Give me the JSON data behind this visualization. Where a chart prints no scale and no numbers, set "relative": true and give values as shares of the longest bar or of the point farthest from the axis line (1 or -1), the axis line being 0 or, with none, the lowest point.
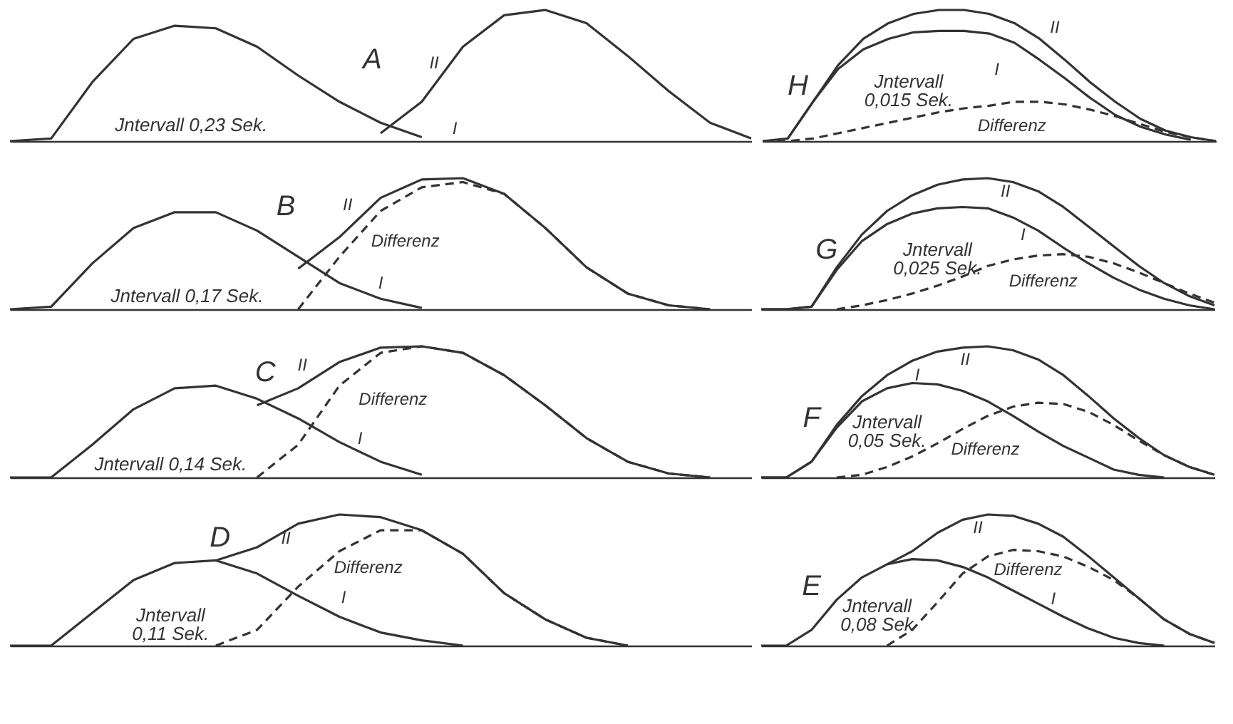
{
  "chart_data": [
    {
      "type": "line",
      "relative": true,
      "categories": [
        null,
        null,
        null,
        null,
        null,
        null,
        null,
        null,
        null,
        null,
        null,
        null,
        null,
        null,
        null,
        null,
        null,
        null,
        null
      ],
      "annotations": [
        "A",
        "Jntervall 0,23 Sek."
      ],
      "series": [
        {
          "name": "I",
          "color": "#333333",
          "line_style": "solid",
          "values": [
            0,
            0.02,
            0.45,
            0.78,
            0.88,
            0.86,
            0.72,
            0.5,
            0.3,
            0.14,
            0.03,
            null,
            null,
            null,
            null,
            null,
            null,
            null,
            null
          ]
        },
        {
          "name": "II",
          "color": "#333333",
          "line_style": "solid",
          "values": [
            null,
            null,
            null,
            null,
            null,
            null,
            null,
            null,
            null,
            0.06,
            0.3,
            0.72,
            0.96,
            1.0,
            0.9,
            0.65,
            0.38,
            0.14,
            0.02
          ]
        }
      ]
    },
    {
      "type": "line",
      "relative": true,
      "categories": [
        null,
        null,
        null,
        null,
        null,
        null,
        null,
        null,
        null,
        null,
        null,
        null,
        null,
        null,
        null,
        null,
        null,
        null,
        null
      ],
      "annotations": [
        "H",
        "Jntervall 0,015 Sek."
      ],
      "series": [
        {
          "name": "I",
          "color": "#333333",
          "line_style": "solid",
          "values": [
            null,
            0.02,
            0.3,
            0.55,
            0.7,
            0.78,
            0.83,
            0.84,
            0.84,
            0.82,
            0.75,
            0.62,
            0.48,
            0.33,
            0.2,
            0.11,
            0.05,
            0.01,
            null
          ]
        },
        {
          "name": "II",
          "color": "#333333",
          "line_style": "solid",
          "values": [
            0,
            0.02,
            0.3,
            0.58,
            0.78,
            0.9,
            0.97,
            1.0,
            1.0,
            0.97,
            0.9,
            0.78,
            0.62,
            0.45,
            0.3,
            0.17,
            0.08,
            0.03,
            0
          ]
        },
        {
          "name": "Differenz",
          "color": "#333333",
          "line_style": "dashed",
          "values": [
            0,
            0,
            0.02,
            0.06,
            0.1,
            0.14,
            0.18,
            0.22,
            0.25,
            0.27,
            0.3,
            0.3,
            0.28,
            0.24,
            0.19,
            0.13,
            0.07,
            0.03,
            0
          ]
        }
      ]
    },
    {
      "type": "line",
      "relative": true,
      "categories": [
        null,
        null,
        null,
        null,
        null,
        null,
        null,
        null,
        null,
        null,
        null,
        null,
        null,
        null,
        null,
        null,
        null,
        null,
        null
      ],
      "annotations": [
        "B",
        "Jntervall 0,17 Sek."
      ],
      "series": [
        {
          "name": "I",
          "color": "#333333",
          "line_style": "solid",
          "values": [
            0,
            0.02,
            0.35,
            0.62,
            0.74,
            0.74,
            0.6,
            0.4,
            0.2,
            0.08,
            0.01,
            null,
            null,
            null,
            null,
            null,
            null,
            null,
            null
          ]
        },
        {
          "name": "II",
          "color": "#333333",
          "line_style": "solid",
          "values": [
            null,
            null,
            null,
            null,
            null,
            null,
            null,
            0.31,
            0.55,
            0.85,
            0.99,
            1.0,
            0.88,
            0.62,
            0.32,
            0.12,
            0.03,
            0,
            null
          ]
        },
        {
          "name": "Differenz",
          "color": "#333333",
          "line_style": "dashed",
          "values": [
            null,
            null,
            null,
            null,
            null,
            null,
            null,
            0,
            0.4,
            0.75,
            0.93,
            0.97,
            0.88,
            0.62,
            0.32,
            0.12,
            0.03,
            0,
            null
          ]
        }
      ]
    },
    {
      "type": "line",
      "relative": true,
      "categories": [
        null,
        null,
        null,
        null,
        null,
        null,
        null,
        null,
        null,
        null,
        null,
        null,
        null,
        null,
        null,
        null,
        null,
        null,
        null
      ],
      "annotations": [
        "G",
        "Jntervall 0,025 Sek."
      ],
      "series": [
        {
          "name": "I",
          "color": "#333333",
          "line_style": "solid",
          "values": [
            0,
            0,
            0.02,
            0.3,
            0.52,
            0.65,
            0.73,
            0.77,
            0.78,
            0.77,
            0.7,
            0.6,
            0.47,
            0.35,
            0.24,
            0.15,
            0.08,
            0.03,
            0
          ]
        },
        {
          "name": "II",
          "color": "#333333",
          "line_style": "solid",
          "values": [
            0,
            0,
            0.02,
            0.32,
            0.57,
            0.75,
            0.87,
            0.95,
            0.99,
            1.0,
            0.97,
            0.9,
            0.78,
            0.63,
            0.48,
            0.33,
            0.2,
            0.1,
            0.03
          ]
        },
        {
          "name": "Differenz",
          "color": "#333333",
          "line_style": "dashed",
          "values": [
            null,
            null,
            null,
            0,
            0.03,
            0.07,
            0.12,
            0.18,
            0.25,
            0.33,
            0.38,
            0.41,
            0.42,
            0.4,
            0.35,
            0.28,
            0.2,
            0.12,
            0.05
          ]
        }
      ]
    },
    {
      "type": "line",
      "relative": true,
      "categories": [
        null,
        null,
        null,
        null,
        null,
        null,
        null,
        null,
        null,
        null,
        null,
        null,
        null,
        null,
        null,
        null,
        null,
        null,
        null
      ],
      "annotations": [
        "C",
        "Jntervall 0,14 Sek."
      ],
      "series": [
        {
          "name": "I",
          "color": "#333333",
          "line_style": "solid",
          "values": [
            0,
            0,
            0.25,
            0.52,
            0.68,
            0.7,
            0.6,
            0.45,
            0.27,
            0.12,
            0.02,
            null,
            null,
            null,
            null,
            null,
            null,
            null,
            null
          ]
        },
        {
          "name": "II",
          "color": "#333333",
          "line_style": "solid",
          "values": [
            null,
            null,
            null,
            null,
            null,
            null,
            0.55,
            0.68,
            0.88,
            0.99,
            1.0,
            0.95,
            0.78,
            0.55,
            0.3,
            0.12,
            0.03,
            0,
            null
          ]
        },
        {
          "name": "Differenz",
          "color": "#333333",
          "line_style": "dashed",
          "values": [
            null,
            null,
            null,
            null,
            null,
            null,
            0,
            0.25,
            0.7,
            0.95,
            1.0,
            0.95,
            0.78,
            0.55,
            0.3,
            0.12,
            0.03,
            0,
            null
          ]
        }
      ]
    },
    {
      "type": "line",
      "relative": true,
      "categories": [
        null,
        null,
        null,
        null,
        null,
        null,
        null,
        null,
        null,
        null,
        null,
        null,
        null,
        null,
        null,
        null,
        null,
        null,
        null
      ],
      "annotations": [
        "F",
        "Jntervall 0,05 Sek."
      ],
      "series": [
        {
          "name": "I",
          "color": "#333333",
          "line_style": "solid",
          "values": [
            0,
            0,
            0.12,
            0.38,
            0.58,
            0.68,
            0.72,
            0.71,
            0.66,
            0.58,
            0.47,
            0.35,
            0.24,
            0.15,
            0.06,
            0.02,
            0,
            null,
            null
          ]
        },
        {
          "name": "II",
          "color": "#333333",
          "line_style": "solid",
          "values": [
            0,
            0,
            0.12,
            0.4,
            0.62,
            0.78,
            0.89,
            0.96,
            0.99,
            1.0,
            0.97,
            0.9,
            0.78,
            0.62,
            0.45,
            0.3,
            0.17,
            0.08,
            0.02
          ]
        },
        {
          "name": "Differenz",
          "color": "#333333",
          "line_style": "dashed",
          "values": [
            null,
            null,
            null,
            0,
            0.02,
            0.08,
            0.16,
            0.26,
            0.37,
            0.47,
            0.54,
            0.57,
            0.56,
            0.5,
            0.4,
            0.28,
            0.17,
            0.08,
            0.02
          ]
        }
      ]
    },
    {
      "type": "line",
      "relative": true,
      "categories": [
        null,
        null,
        null,
        null,
        null,
        null,
        null,
        null,
        null,
        null,
        null,
        null,
        null,
        null,
        null,
        null,
        null,
        null,
        null
      ],
      "annotations": [
        "D",
        "Jntervall 0,11 Sek."
      ],
      "series": [
        {
          "name": "I",
          "color": "#333333",
          "line_style": "solid",
          "values": [
            0,
            0,
            0.25,
            0.5,
            0.63,
            0.65,
            0.55,
            0.38,
            0.22,
            0.1,
            0.04,
            0,
            null,
            null,
            null,
            null,
            null,
            null,
            null
          ]
        },
        {
          "name": "II",
          "color": "#333333",
          "line_style": "solid",
          "values": [
            null,
            null,
            null,
            null,
            null,
            0.65,
            0.75,
            0.93,
            1.0,
            0.98,
            0.88,
            0.7,
            0.4,
            0.2,
            0.06,
            0,
            null,
            null,
            null
          ]
        },
        {
          "name": "Differenz",
          "color": "#333333",
          "line_style": "dashed",
          "values": [
            null,
            null,
            null,
            null,
            null,
            0,
            0.12,
            0.45,
            0.72,
            0.88,
            0.88,
            0.7,
            0.4,
            0.2,
            0.06,
            0,
            null,
            null,
            null
          ]
        }
      ]
    },
    {
      "type": "line",
      "relative": true,
      "categories": [
        null,
        null,
        null,
        null,
        null,
        null,
        null,
        null,
        null,
        null,
        null,
        null,
        null,
        null,
        null,
        null,
        null,
        null,
        null
      ],
      "annotations": [
        "E",
        "Jntervall 0,08 Sek"
      ],
      "series": [
        {
          "name": "I",
          "color": "#333333",
          "line_style": "solid",
          "values": [
            0,
            0,
            0.12,
            0.35,
            0.52,
            0.62,
            0.66,
            0.65,
            0.6,
            0.52,
            0.42,
            0.32,
            0.22,
            0.13,
            0.06,
            0.02,
            0,
            null,
            null
          ]
        },
        {
          "name": "II",
          "color": "#333333",
          "line_style": "solid",
          "values": [
            null,
            null,
            null,
            null,
            null,
            0.62,
            0.72,
            0.86,
            0.96,
            1.0,
            0.99,
            0.93,
            0.83,
            0.68,
            0.52,
            0.36,
            0.2,
            0.09,
            0.02
          ]
        },
        {
          "name": "Differenz",
          "color": "#333333",
          "line_style": "dashed",
          "values": [
            null,
            null,
            null,
            null,
            null,
            0,
            0.12,
            0.33,
            0.55,
            0.68,
            0.73,
            0.72,
            0.68,
            0.6,
            0.5,
            0.36,
            0.2,
            0.09,
            0.02
          ]
        }
      ]
    }
  ]
}
